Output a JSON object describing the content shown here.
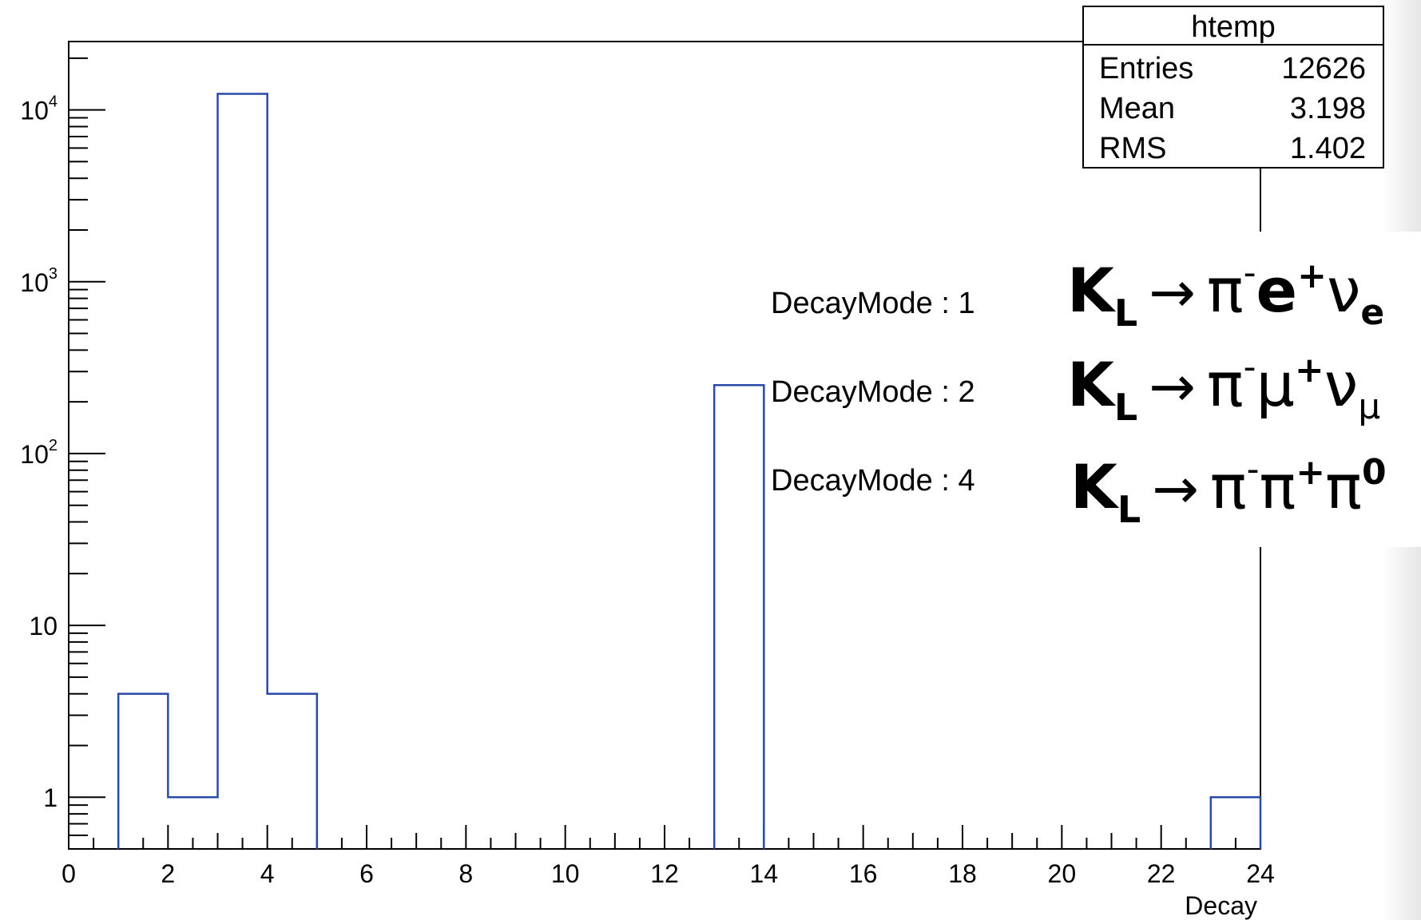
{
  "chart_data": {
    "type": "bar",
    "histogram": true,
    "xlabel": "Decay",
    "ylabel": "",
    "xlim": [
      0,
      24
    ],
    "ylim": [
      0.5,
      25000
    ],
    "yscale": "log",
    "grid": false,
    "line_color": "#2a4aa8",
    "bins": [
      {
        "x0": 1,
        "x1": 2,
        "value": 4
      },
      {
        "x0": 2,
        "x1": 3,
        "value": 1
      },
      {
        "x0": 3,
        "x1": 4,
        "value": 12400
      },
      {
        "x0": 4,
        "x1": 5,
        "value": 4
      },
      {
        "x0": 13,
        "x1": 14,
        "value": 250
      },
      {
        "x0": 23,
        "x1": 24,
        "value": 1
      }
    ],
    "x_ticks": [
      {
        "v": 0,
        "label": "0"
      },
      {
        "v": 2,
        "label": "2"
      },
      {
        "v": 4,
        "label": "4"
      },
      {
        "v": 6,
        "label": "6"
      },
      {
        "v": 8,
        "label": "8"
      },
      {
        "v": 10,
        "label": "10"
      },
      {
        "v": 12,
        "label": "12"
      },
      {
        "v": 14,
        "label": "14"
      },
      {
        "v": 16,
        "label": "16"
      },
      {
        "v": 18,
        "label": "18"
      },
      {
        "v": 20,
        "label": "20"
      },
      {
        "v": 22,
        "label": "22"
      },
      {
        "v": 24,
        "label": "24"
      }
    ],
    "y_ticks": [
      {
        "v": 1,
        "label": "1"
      },
      {
        "v": 10,
        "label": "10"
      },
      {
        "v": 100,
        "base": "10",
        "exp": "2"
      },
      {
        "v": 1000,
        "base": "10",
        "exp": "3"
      },
      {
        "v": 10000,
        "base": "10",
        "exp": "4"
      }
    ]
  },
  "stats_box": {
    "title": "htemp",
    "rows": [
      {
        "label": "Entries",
        "value": "12626"
      },
      {
        "label": "Mean",
        "value": "3.198"
      },
      {
        "label": "RMS",
        "value": "1.402"
      }
    ]
  },
  "annotations": {
    "modes": [
      {
        "label": "DecayMode : 1",
        "K": "K",
        "sub": "L",
        "arrow": "→",
        "p1": "π",
        "p1sup": "-",
        "p2": "e",
        "p2sup": "+",
        "p3": "ν",
        "p3sub": "e"
      },
      {
        "label": "DecayMode : 2",
        "K": "K",
        "sub": "L",
        "arrow": "→",
        "p1": "π",
        "p1sup": "-",
        "p2": "μ",
        "p2sup": "+",
        "p3": "ν",
        "p3sub": "μ"
      },
      {
        "label": "DecayMode : 4",
        "K": "K",
        "sub": "L",
        "arrow": "→",
        "p1": "π",
        "p1sup": "-",
        "p2": "π",
        "p2sup": "+",
        "p3": "π",
        "p3sup": "0"
      }
    ]
  }
}
